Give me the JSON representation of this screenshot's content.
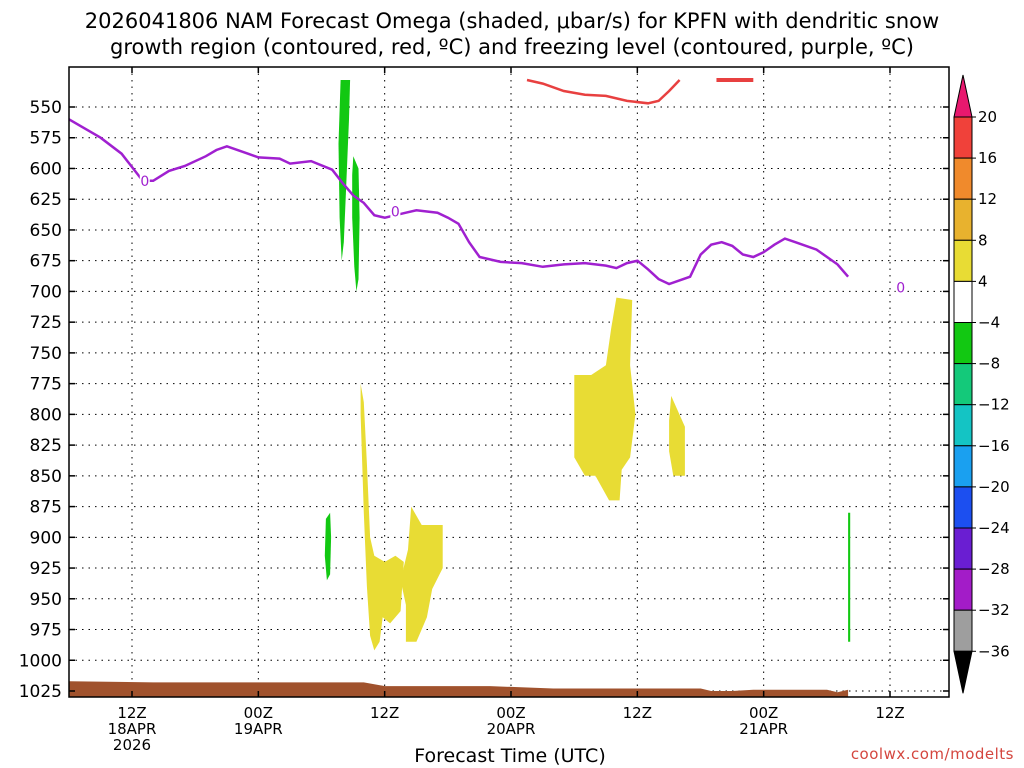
{
  "chart_data": {
    "type": "contour",
    "title_line1": "2026041806 NAM Forecast Omega (shaded, μbar/s) for KPFN with dendritic snow",
    "title_line2": "growth region (contoured, red, ºC) and freezing level (contoured, purple, ºC)",
    "xlabel": "Forecast Time (UTC)",
    "credit": "coolwx.com/modelts",
    "y_axis": {
      "label": "",
      "inverted": true,
      "ticks": [
        550,
        575,
        600,
        625,
        650,
        675,
        700,
        725,
        750,
        775,
        800,
        825,
        850,
        875,
        900,
        925,
        950,
        975,
        1000,
        1025
      ]
    },
    "x_axis": {
      "ticks": [
        {
          "h": 12,
          "lines": [
            "12Z",
            "18APR",
            "2026"
          ]
        },
        {
          "h": 24,
          "lines": [
            "00Z",
            "19APR"
          ]
        },
        {
          "h": 36,
          "lines": [
            "12Z"
          ]
        },
        {
          "h": 48,
          "lines": [
            "00Z",
            "20APR"
          ]
        },
        {
          "h": 60,
          "lines": [
            "12Z"
          ]
        },
        {
          "h": 72,
          "lines": [
            "00Z",
            "21APR"
          ]
        },
        {
          "h": 84,
          "lines": [
            "12Z"
          ]
        }
      ]
    },
    "grid": true,
    "colorbar": {
      "labels": [
        "20",
        "16",
        "12",
        "8",
        "4",
        "−4",
        "−8",
        "−12",
        "−16",
        "−20",
        "−24",
        "−28",
        "−32",
        "−36"
      ],
      "colors": [
        "#e8186e",
        "#f0413a",
        "#f08a2c",
        "#e8b22e",
        "#e8dc34",
        "#ffffff",
        "#12c812",
        "#14c97a",
        "#14c4c4",
        "#1aa0f0",
        "#1c4ff0",
        "#6a1ed2",
        "#a31cc8",
        "#9e9e9e",
        "#000000"
      ]
    },
    "freezing_level": {
      "color": "#a020d0",
      "label": "0",
      "label_points": [
        [
          7.2,
          610
        ],
        [
          31.0,
          635
        ],
        [
          79.0,
          697
        ]
      ],
      "points": [
        [
          0,
          560
        ],
        [
          2,
          570
        ],
        [
          3,
          575
        ],
        [
          5,
          588
        ],
        [
          7,
          610
        ],
        [
          8,
          610
        ],
        [
          9.5,
          602
        ],
        [
          11,
          598
        ],
        [
          13,
          590
        ],
        [
          14,
          585
        ],
        [
          15,
          582
        ],
        [
          17,
          588
        ],
        [
          18,
          591
        ],
        [
          20,
          592
        ],
        [
          21,
          596
        ],
        [
          23,
          594
        ],
        [
          25,
          601
        ],
        [
          26,
          612
        ],
        [
          27,
          622
        ],
        [
          28,
          628
        ],
        [
          29,
          638
        ],
        [
          30,
          640
        ],
        [
          31,
          638
        ],
        [
          32,
          636
        ],
        [
          33,
          634
        ],
        [
          34,
          635
        ],
        [
          35,
          636
        ],
        [
          36,
          640
        ],
        [
          37,
          645
        ],
        [
          38,
          660
        ],
        [
          39,
          672
        ],
        [
          41,
          676
        ],
        [
          43,
          677
        ],
        [
          45,
          680
        ],
        [
          47,
          678
        ],
        [
          49,
          677
        ],
        [
          51,
          679
        ],
        [
          52,
          681
        ],
        [
          53,
          677
        ],
        [
          54,
          675
        ],
        [
          55,
          682
        ],
        [
          56,
          690
        ],
        [
          57,
          694
        ],
        [
          59,
          688
        ],
        [
          60,
          670
        ],
        [
          61,
          662
        ],
        [
          62,
          660
        ],
        [
          63,
          663
        ],
        [
          64,
          670
        ],
        [
          65,
          672
        ],
        [
          66,
          668
        ],
        [
          67,
          662
        ],
        [
          68,
          657
        ],
        [
          69,
          660
        ],
        [
          71,
          666
        ],
        [
          73,
          678
        ],
        [
          74,
          688
        ]
      ]
    },
    "dgz_contour": {
      "color": "#e84040",
      "points": [
        [
          43.5,
          528
        ],
        [
          45,
          531
        ],
        [
          47,
          537
        ],
        [
          49,
          540
        ],
        [
          51,
          541
        ],
        [
          53,
          545
        ],
        [
          55,
          547
        ],
        [
          56,
          545
        ],
        [
          57,
          537
        ],
        [
          58,
          528
        ]
      ]
    },
    "omega_positive_regions": [
      {
        "value": "4 to 8",
        "points": [
          [
            27.7,
            775
          ],
          [
            28.0,
            790
          ],
          [
            28.3,
            840
          ],
          [
            28.6,
            900
          ],
          [
            29.0,
            915
          ],
          [
            30.0,
            920
          ],
          [
            31.0,
            915
          ],
          [
            31.8,
            920
          ],
          [
            31.5,
            960
          ],
          [
            30.5,
            970
          ],
          [
            29.8,
            965
          ],
          [
            29.5,
            985
          ],
          [
            29.0,
            992
          ],
          [
            28.6,
            980
          ],
          [
            28.3,
            940
          ],
          [
            28.0,
            880
          ],
          [
            27.7,
            800
          ]
        ]
      },
      {
        "value": "4 to 8",
        "points": [
          [
            32.5,
            875
          ],
          [
            33.5,
            890
          ],
          [
            35.5,
            890
          ],
          [
            35.5,
            925
          ],
          [
            34.5,
            942
          ],
          [
            34.0,
            965
          ],
          [
            33.0,
            985
          ],
          [
            32.0,
            985
          ],
          [
            32.0,
            955
          ],
          [
            31.5,
            935
          ],
          [
            32.2,
            910
          ]
        ]
      },
      {
        "value": "4 to 8",
        "points": [
          [
            52.0,
            705
          ],
          [
            53.5,
            707
          ],
          [
            53.3,
            760
          ],
          [
            53.8,
            800
          ],
          [
            53.3,
            835
          ],
          [
            52.5,
            845
          ],
          [
            52.3,
            870
          ],
          [
            51.3,
            870
          ],
          [
            50.0,
            850
          ],
          [
            49.0,
            850
          ],
          [
            48.0,
            835
          ],
          [
            48.0,
            768
          ],
          [
            49.6,
            768
          ],
          [
            51.0,
            760
          ],
          [
            51.5,
            730
          ]
        ]
      },
      {
        "value": "4 to 8",
        "points": [
          [
            57.2,
            785
          ],
          [
            58.5,
            810
          ],
          [
            58.5,
            850
          ],
          [
            57.4,
            850
          ],
          [
            57.0,
            830
          ],
          [
            57.0,
            805
          ]
        ]
      }
    ],
    "omega_negative_regions": [
      {
        "value": "-4 to -8",
        "points": [
          [
            25.8,
            528
          ],
          [
            26.7,
            528
          ],
          [
            26.6,
            560
          ],
          [
            26.3,
            620
          ],
          [
            26.1,
            660
          ],
          [
            25.9,
            675
          ],
          [
            25.7,
            640
          ],
          [
            25.6,
            580
          ]
        ]
      },
      {
        "value": "-4 to -8",
        "points": [
          [
            27.0,
            590
          ],
          [
            27.5,
            600
          ],
          [
            27.6,
            640
          ],
          [
            27.5,
            690
          ],
          [
            27.3,
            700
          ],
          [
            27.1,
            680
          ],
          [
            26.9,
            640
          ],
          [
            26.9,
            605
          ]
        ]
      },
      {
        "value": "-4 to -8",
        "points": [
          [
            24.4,
            885
          ],
          [
            24.8,
            880
          ],
          [
            24.9,
            900
          ],
          [
            24.8,
            930
          ],
          [
            24.5,
            935
          ],
          [
            24.3,
            915
          ]
        ]
      },
      {
        "value": "-4 to -8",
        "points": [
          [
            74.0,
            880
          ],
          [
            74.2,
            880
          ],
          [
            74.2,
            985
          ],
          [
            74.0,
            985
          ]
        ]
      }
    ],
    "terrain": {
      "color": "#a0522d",
      "points": [
        [
          0,
          1017
        ],
        [
          8,
          1018
        ],
        [
          13,
          1018
        ],
        [
          18,
          1018
        ],
        [
          28,
          1018
        ],
        [
          30,
          1021
        ],
        [
          35,
          1021
        ],
        [
          40,
          1021
        ],
        [
          46,
          1023
        ],
        [
          55,
          1023
        ],
        [
          60,
          1023
        ],
        [
          61,
          1025
        ],
        [
          63,
          1025
        ],
        [
          65,
          1024
        ],
        [
          72,
          1024
        ],
        [
          73,
          1026
        ],
        [
          74,
          1024
        ]
      ]
    }
  }
}
